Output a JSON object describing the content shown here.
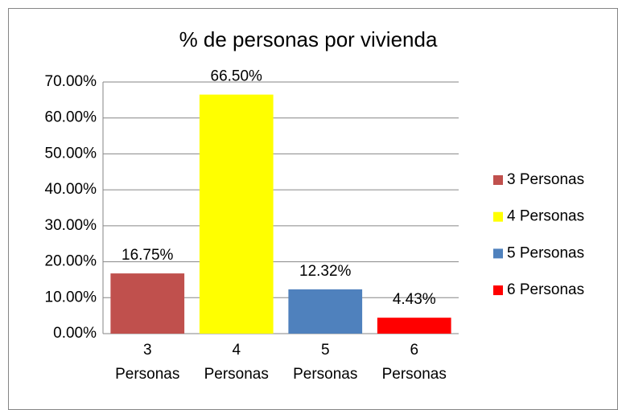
{
  "chart_data": {
    "type": "bar",
    "title": "% de personas por vivienda",
    "categories": [
      "3 Personas",
      "4 Personas",
      "5 Personas",
      "6 Personas"
    ],
    "values": [
      16.75,
      66.5,
      12.32,
      4.43
    ],
    "value_labels": [
      "16.75%",
      "66.50%",
      "12.32%",
      "4.43%"
    ],
    "colors": [
      "#c0504d",
      "#ffff00",
      "#4f81bd",
      "#ff0000"
    ],
    "ylim": [
      0,
      70
    ],
    "yticks": [
      {
        "value": 0,
        "label": "0.00%"
      },
      {
        "value": 10,
        "label": "10.00%"
      },
      {
        "value": 20,
        "label": "20.00%"
      },
      {
        "value": 30,
        "label": "30.00%"
      },
      {
        "value": 40,
        "label": "40.00%"
      },
      {
        "value": 50,
        "label": "50.00%"
      },
      {
        "value": 60,
        "label": "60.00%"
      },
      {
        "value": 70,
        "label": "70.00%"
      }
    ],
    "grid": true,
    "legend": "right"
  }
}
